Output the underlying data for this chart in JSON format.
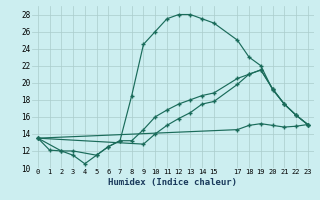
{
  "xlabel": "Humidex (Indice chaleur)",
  "bg_color": "#cceef0",
  "grid_color": "#aacccc",
  "line_color": "#1a6b5a",
  "xlim": [
    -0.5,
    23.5
  ],
  "ylim": [
    10,
    29
  ],
  "xticks": [
    0,
    1,
    2,
    3,
    4,
    5,
    6,
    7,
    8,
    9,
    10,
    11,
    12,
    13,
    14,
    15,
    17,
    18,
    19,
    20,
    21,
    22,
    23
  ],
  "yticks": [
    10,
    12,
    14,
    16,
    18,
    20,
    22,
    24,
    26,
    28
  ],
  "line1_x": [
    0,
    1,
    2,
    3,
    4,
    5,
    6,
    7,
    8,
    9,
    10,
    11,
    12,
    13,
    14,
    15,
    17,
    18,
    19,
    20,
    21,
    22,
    23
  ],
  "line1_y": [
    13.5,
    12.1,
    12.0,
    11.5,
    10.5,
    11.5,
    12.5,
    13.2,
    18.5,
    24.5,
    26.0,
    27.5,
    28.0,
    28.0,
    27.5,
    27.0,
    25.0,
    23.0,
    22.0,
    19.2,
    17.5,
    16.2,
    15.1
  ],
  "line2_x": [
    0,
    2,
    3,
    5,
    6,
    7,
    8,
    9,
    10,
    11,
    12,
    13,
    14,
    15,
    17,
    18,
    19,
    20,
    21,
    22,
    23
  ],
  "line2_y": [
    13.5,
    12.0,
    12.0,
    11.5,
    12.5,
    13.2,
    13.2,
    14.5,
    16.0,
    16.8,
    17.5,
    18.0,
    18.5,
    18.8,
    20.5,
    21.0,
    21.5,
    19.3,
    17.5,
    16.2,
    15.1
  ],
  "line3_x": [
    0,
    9,
    10,
    11,
    12,
    13,
    14,
    15,
    17,
    18,
    19,
    20,
    21,
    22,
    23
  ],
  "line3_y": [
    13.5,
    12.8,
    14.0,
    15.0,
    15.8,
    16.5,
    17.5,
    17.8,
    19.8,
    21.0,
    21.5,
    19.3,
    17.5,
    16.2,
    15.1
  ],
  "line4_x": [
    0,
    17,
    18,
    19,
    20,
    21,
    22,
    23
  ],
  "line4_y": [
    13.5,
    14.5,
    15.0,
    15.2,
    15.0,
    14.8,
    14.9,
    15.1
  ]
}
